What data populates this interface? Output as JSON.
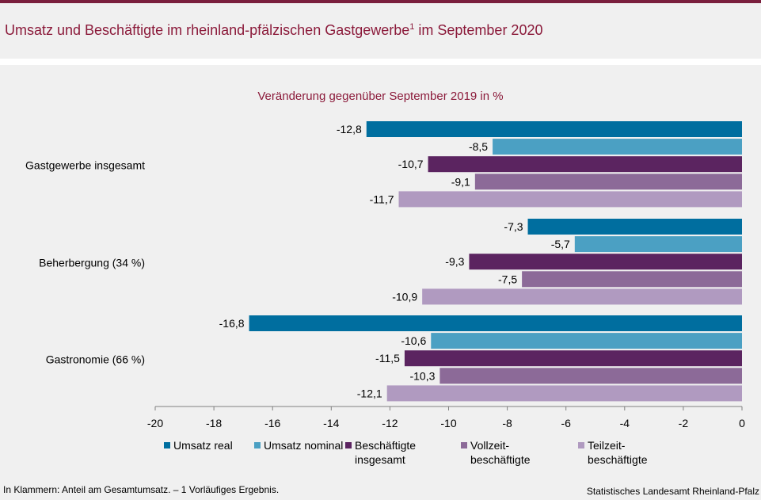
{
  "title_main": "Umsatz und Beschäftigte im rheinland-pfälzischen Gastgewerbe",
  "title_sup": "1",
  "title_suffix": " im September 2020",
  "footnote": "In Klammern: Anteil am Gesamtumsatz. – 1 Vorläufiges Ergebnis.",
  "source": "Statistisches Landesamt Rheinland-Pfalz",
  "colors": {
    "title": "#8b1a3a",
    "topbar": "#7a1f3d"
  },
  "chart_data": {
    "type": "bar",
    "orientation": "horizontal",
    "subtitle": "Veränderung gegenüber September 2019 in %",
    "categories": [
      "Gastgewerbe insgesamt",
      "Beherbergung (34 %)",
      "Gastronomie (66 %)"
    ],
    "series": [
      {
        "name": "Umsatz real",
        "color": "#006e9f",
        "values": [
          -12.8,
          -7.3,
          -16.8
        ],
        "labels": [
          "-12,8",
          "-7,3",
          "-16,8"
        ]
      },
      {
        "name": "Umsatz nominal",
        "color": "#4ba0c3",
        "values": [
          -8.5,
          -5.7,
          -10.6
        ],
        "labels": [
          "-8,5",
          "-5,7",
          "-10,6"
        ]
      },
      {
        "name": "Beschäftigte insgesamt",
        "color": "#5b2460",
        "values": [
          -10.7,
          -9.3,
          -11.5
        ],
        "labels": [
          "-10,7",
          "-9,3",
          "-11,5"
        ]
      },
      {
        "name": "Vollzeit- beschäftigte",
        "color": "#8c6a98",
        "values": [
          -9.1,
          -7.5,
          -10.3
        ],
        "labels": [
          "-9,1",
          "-7,5",
          "-10,3"
        ]
      },
      {
        "name": "Teilzeit- beschäftigte",
        "color": "#b09ac0",
        "values": [
          -11.7,
          -10.9,
          -12.1
        ],
        "labels": [
          "-11,7",
          "-10,9",
          "-12,1"
        ]
      }
    ],
    "xlim": [
      -20,
      0
    ],
    "xticks": [
      -20,
      -18,
      -16,
      -14,
      -12,
      -10,
      -8,
      -6,
      -4,
      -2,
      0
    ],
    "grid": false,
    "legend_position": "bottom"
  }
}
